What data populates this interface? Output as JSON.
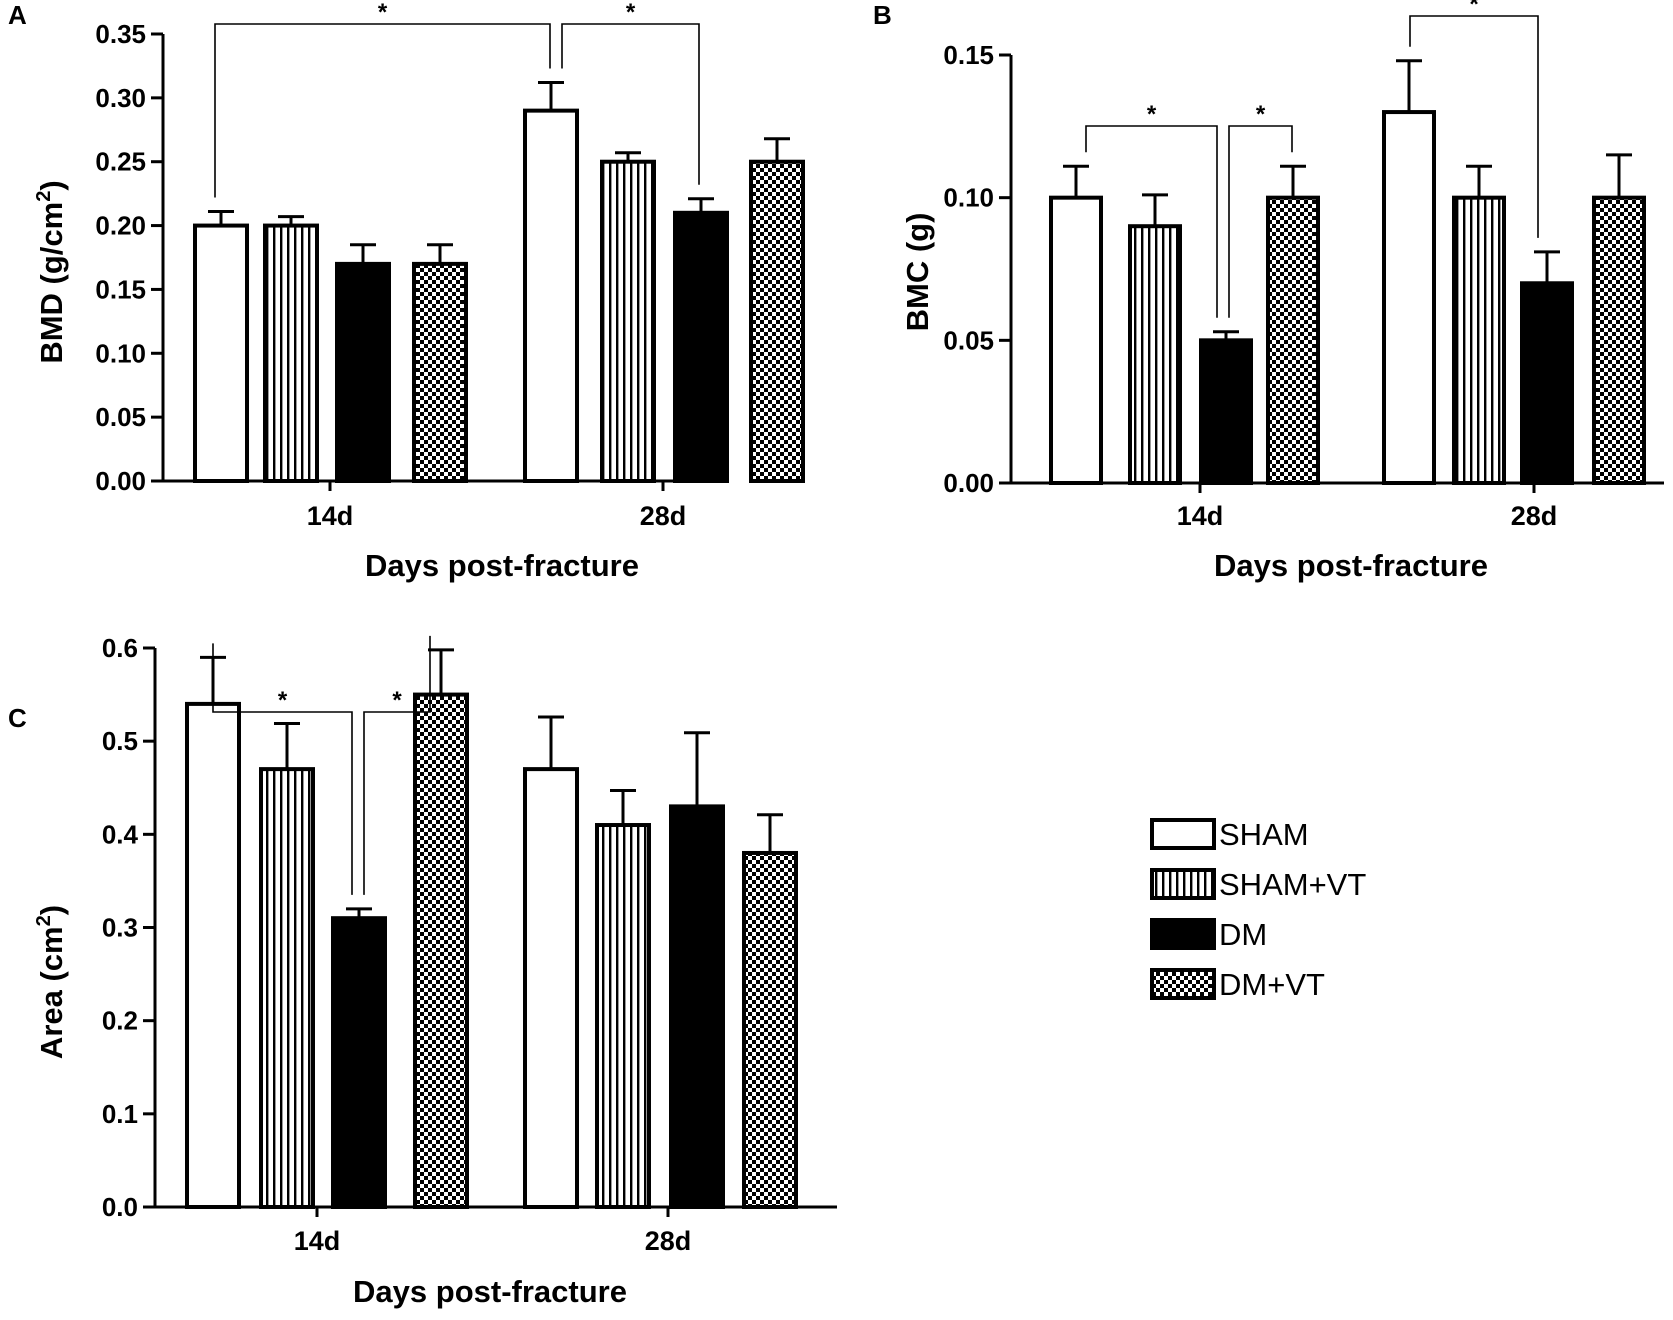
{
  "legend": {
    "entries": [
      {
        "label": "SHAM",
        "pattern": "white"
      },
      {
        "label": "SHAM+VT",
        "pattern": "vstripes"
      },
      {
        "label": "DM",
        "pattern": "black"
      },
      {
        "label": "DM+VT",
        "pattern": "checker"
      }
    ]
  },
  "chart_data": [
    {
      "panel": "A",
      "type": "bar",
      "title": "",
      "ylabel": "BMD (g/cm2)",
      "ylabel_main": "BMD (g/cm",
      "ylabel_sup": "2",
      "ylabel_tail": ")",
      "xlabel": "Days post-fracture",
      "categories": [
        "14d",
        "28d"
      ],
      "ylim": [
        0,
        0.35
      ],
      "yticks": [
        0.0,
        0.05,
        0.1,
        0.15,
        0.2,
        0.25,
        0.3,
        0.35
      ],
      "ytick_labels": [
        "0.00",
        "0.05",
        "0.10",
        "0.15",
        "0.20",
        "0.25",
        "0.30",
        "0.35"
      ],
      "series": [
        {
          "name": "SHAM",
          "values": [
            0.2,
            0.29
          ],
          "errors": [
            0.011,
            0.022
          ]
        },
        {
          "name": "SHAM+VT",
          "values": [
            0.2,
            0.25
          ],
          "errors": [
            0.007,
            0.007
          ]
        },
        {
          "name": "DM",
          "values": [
            0.17,
            0.21
          ],
          "errors": [
            0.015,
            0.011
          ]
        },
        {
          "name": "DM+VT",
          "values": [
            0.17,
            0.25
          ],
          "errors": [
            0.015,
            0.018
          ]
        }
      ],
      "significance": [
        {
          "from": [
            0,
            0
          ],
          "to": [
            1,
            0
          ],
          "label": "*"
        },
        {
          "from": [
            1,
            0
          ],
          "to": [
            1,
            2
          ],
          "label": "*"
        }
      ]
    },
    {
      "panel": "B",
      "type": "bar",
      "title": "",
      "ylabel": "BMC (g)",
      "ylabel_main": "BMC (g)",
      "ylabel_sup": "",
      "ylabel_tail": "",
      "xlabel": "Days post-fracture",
      "categories": [
        "14d",
        "28d"
      ],
      "ylim": [
        0,
        0.15
      ],
      "yticks": [
        0.0,
        0.05,
        0.1,
        0.15
      ],
      "ytick_labels": [
        "0.00",
        "0.05",
        "0.10",
        "0.15"
      ],
      "series": [
        {
          "name": "SHAM",
          "values": [
            0.1,
            0.13
          ],
          "errors": [
            0.011,
            0.018
          ]
        },
        {
          "name": "SHAM+VT",
          "values": [
            0.09,
            0.1
          ],
          "errors": [
            0.011,
            0.011
          ]
        },
        {
          "name": "DM",
          "values": [
            0.05,
            0.07
          ],
          "errors": [
            0.003,
            0.011
          ]
        },
        {
          "name": "DM+VT",
          "values": [
            0.1,
            0.1
          ],
          "errors": [
            0.011,
            0.015
          ]
        }
      ],
      "significance": [
        {
          "from": [
            0,
            0
          ],
          "to": [
            0,
            2
          ],
          "label": "*"
        },
        {
          "from": [
            0,
            2
          ],
          "to": [
            0,
            3
          ],
          "label": "*"
        },
        {
          "from": [
            1,
            0
          ],
          "to": [
            1,
            2
          ],
          "label": "*"
        }
      ]
    },
    {
      "panel": "C",
      "type": "bar",
      "title": "",
      "ylabel": "Area (cm2)",
      "ylabel_main": "Area (cm",
      "ylabel_sup": "2",
      "ylabel_tail": ")",
      "xlabel": "Days post-fracture",
      "categories": [
        "14d",
        "28d"
      ],
      "ylim": [
        0,
        0.6
      ],
      "yticks": [
        0.0,
        0.1,
        0.2,
        0.3,
        0.4,
        0.5,
        0.6
      ],
      "ytick_labels": [
        "0.0",
        "0.1",
        "0.2",
        "0.3",
        "0.4",
        "0.5",
        "0.6"
      ],
      "series": [
        {
          "name": "SHAM",
          "values": [
            0.54,
            0.47
          ],
          "errors": [
            0.05,
            0.056
          ]
        },
        {
          "name": "SHAM+VT",
          "values": [
            0.47,
            0.41
          ],
          "errors": [
            0.049,
            0.037
          ]
        },
        {
          "name": "DM",
          "values": [
            0.31,
            0.43
          ],
          "errors": [
            0.01,
            0.079
          ]
        },
        {
          "name": "DM+VT",
          "values": [
            0.55,
            0.38
          ],
          "errors": [
            0.048,
            0.041
          ]
        }
      ],
      "significance": [
        {
          "from": [
            0,
            0
          ],
          "to": [
            0,
            2
          ],
          "label": "*"
        },
        {
          "from": [
            0,
            2
          ],
          "to": [
            0,
            3
          ],
          "label": "*"
        }
      ]
    }
  ]
}
